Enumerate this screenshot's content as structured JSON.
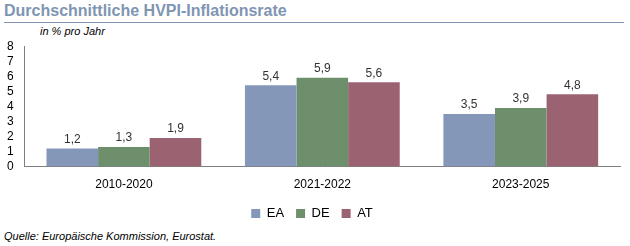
{
  "chart_data": {
    "type": "bar",
    "title": "Durchschnittliche HVPI-Inflationsrate",
    "subtitle": "in % pro Jahr",
    "source": "Quelle: Europäische Kommission, Eurostat.",
    "categories": [
      "2010-2020",
      "2021-2022",
      "2023-2025"
    ],
    "series": [
      {
        "name": "EA",
        "color": "#8497b8",
        "values": [
          1.2,
          5.4,
          3.5
        ],
        "value_labels": [
          "1,2",
          "5,4",
          "3,5"
        ]
      },
      {
        "name": "DE",
        "color": "#6e8f6c",
        "values": [
          1.3,
          5.9,
          3.9
        ],
        "value_labels": [
          "1,3",
          "5,9",
          "3,9"
        ]
      },
      {
        "name": "AT",
        "color": "#9b6372",
        "values": [
          1.9,
          5.6,
          4.8
        ],
        "value_labels": [
          "1,9",
          "5,6",
          "4,8"
        ]
      }
    ],
    "ylim": [
      0,
      8
    ],
    "yticks": [
      0,
      1,
      2,
      3,
      4,
      5,
      6,
      7,
      8
    ],
    "grid": false,
    "legend": "bottom",
    "data_labels": true
  }
}
